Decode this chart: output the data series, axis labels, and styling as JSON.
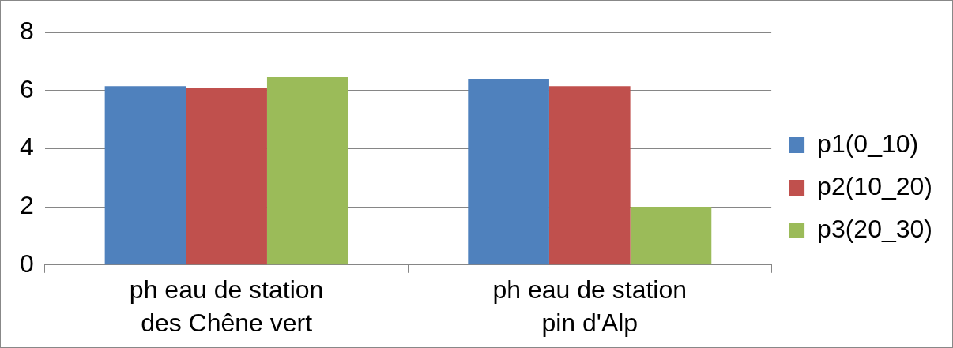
{
  "chart_data": {
    "type": "bar",
    "categories": [
      "ph eau de station des Chêne vert",
      "ph eau de station pin d'Alp"
    ],
    "series": [
      {
        "name": "p1(0_10)",
        "color": "#4f81bd",
        "values": [
          6.15,
          6.4
        ]
      },
      {
        "name": "p2(10_20)",
        "color": "#c0504d",
        "values": [
          6.1,
          6.15
        ]
      },
      {
        "name": "p3(20_30)",
        "color": "#9bbb59",
        "values": [
          6.45,
          2.0
        ]
      }
    ],
    "ylim": [
      0,
      8
    ],
    "yticks": [
      0,
      2,
      4,
      6,
      8
    ],
    "grid": "y",
    "legend": "right"
  }
}
